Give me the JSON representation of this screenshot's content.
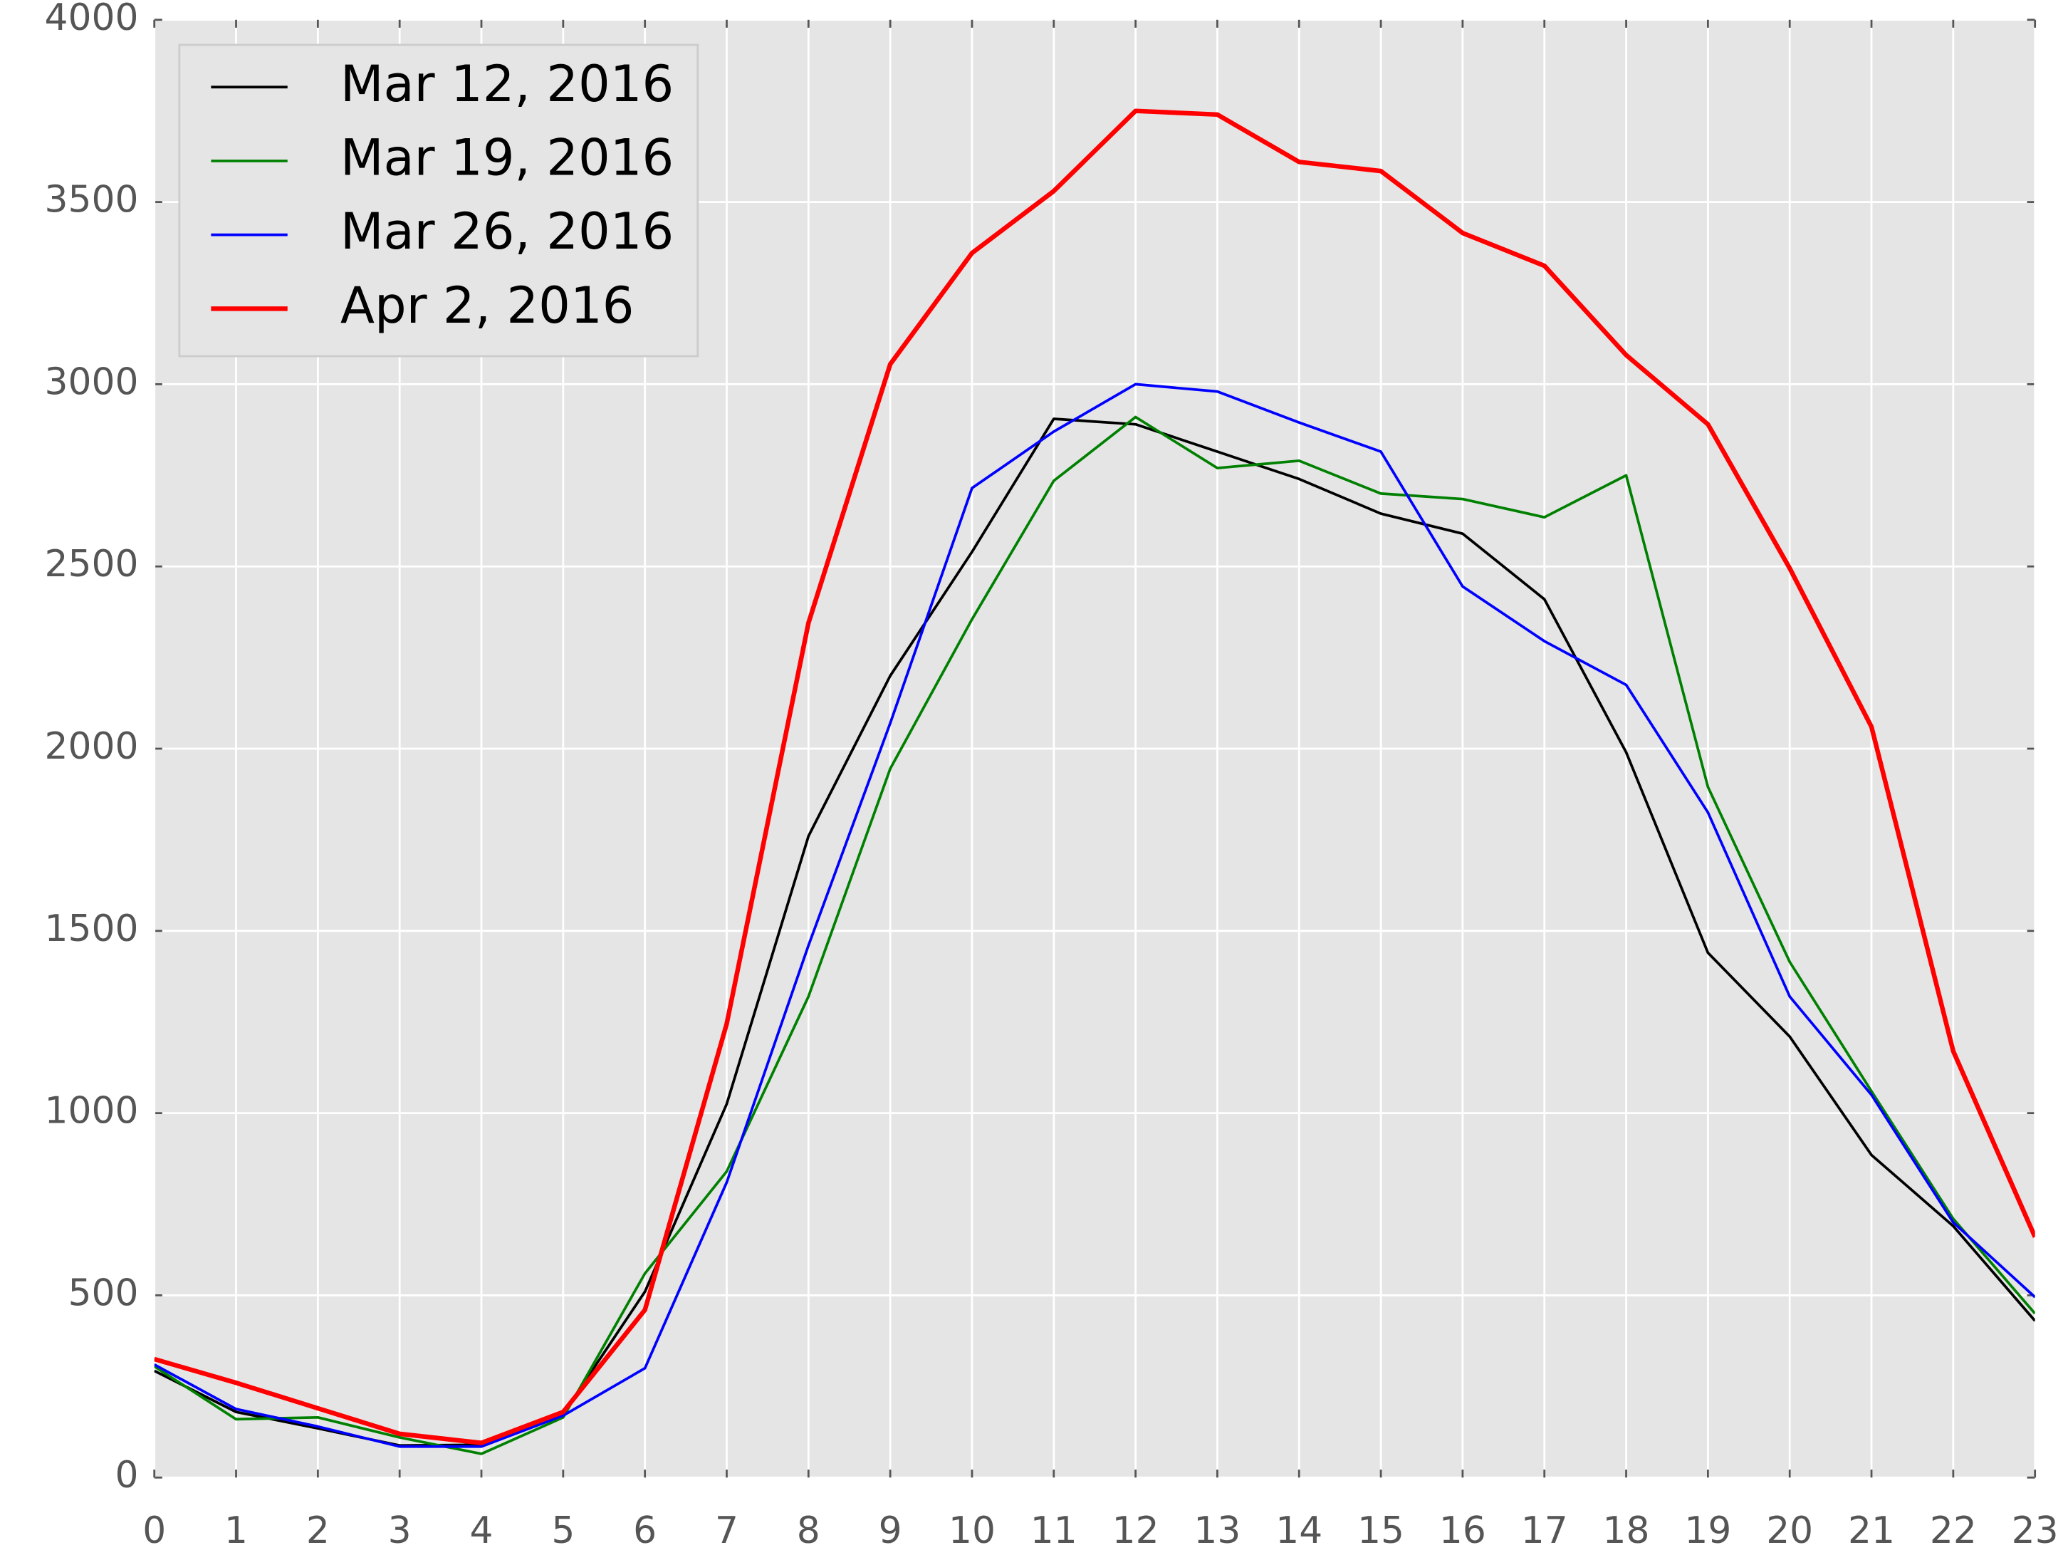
{
  "chart_data": {
    "type": "line",
    "x": [
      0,
      1,
      2,
      3,
      4,
      5,
      6,
      7,
      8,
      9,
      10,
      11,
      12,
      13,
      14,
      15,
      16,
      17,
      18,
      19,
      20,
      21,
      22,
      23
    ],
    "series": [
      {
        "name": "Mar 12, 2016",
        "color": "#000000",
        "line_width": 2,
        "values": [
          293,
          180,
          135,
          88,
          90,
          175,
          510,
          1025,
          1760,
          2200,
          2540,
          2905,
          2890,
          2815,
          2740,
          2645,
          2590,
          2410,
          1990,
          1440,
          1210,
          885,
          690,
          430
        ]
      },
      {
        "name": "Mar 19, 2016",
        "color": "#008000",
        "line_width": 2,
        "values": [
          305,
          160,
          165,
          110,
          65,
          165,
          560,
          840,
          1320,
          1945,
          2355,
          2735,
          2910,
          2770,
          2790,
          2700,
          2685,
          2635,
          2750,
          1895,
          1415,
          1060,
          710,
          450
        ]
      },
      {
        "name": "Mar 26, 2016",
        "color": "#0000ff",
        "line_width": 2,
        "values": [
          310,
          188,
          140,
          85,
          85,
          170,
          300,
          810,
          1460,
          2070,
          2715,
          2870,
          3000,
          2980,
          2895,
          2815,
          2445,
          2295,
          2175,
          1825,
          1320,
          1050,
          700,
          495
        ]
      },
      {
        "name": "Apr 2, 2016",
        "color": "#ff0000",
        "line_width": 3.5,
        "values": [
          325,
          260,
          190,
          120,
          95,
          180,
          460,
          1245,
          2345,
          3055,
          3360,
          3530,
          3750,
          3740,
          3610,
          3585,
          3415,
          3325,
          3080,
          2890,
          2495,
          2060,
          1170,
          660
        ]
      }
    ],
    "xlim": [
      0,
      23
    ],
    "xticks": [
      0,
      1,
      2,
      3,
      4,
      5,
      6,
      7,
      8,
      9,
      10,
      11,
      12,
      13,
      14,
      15,
      16,
      17,
      18,
      19,
      20,
      21,
      22,
      23
    ],
    "ylim": [
      0,
      4000
    ],
    "yticks": [
      0,
      500,
      1000,
      1500,
      2000,
      2500,
      3000,
      3500,
      4000
    ],
    "grid": true,
    "legend": "upper left"
  }
}
